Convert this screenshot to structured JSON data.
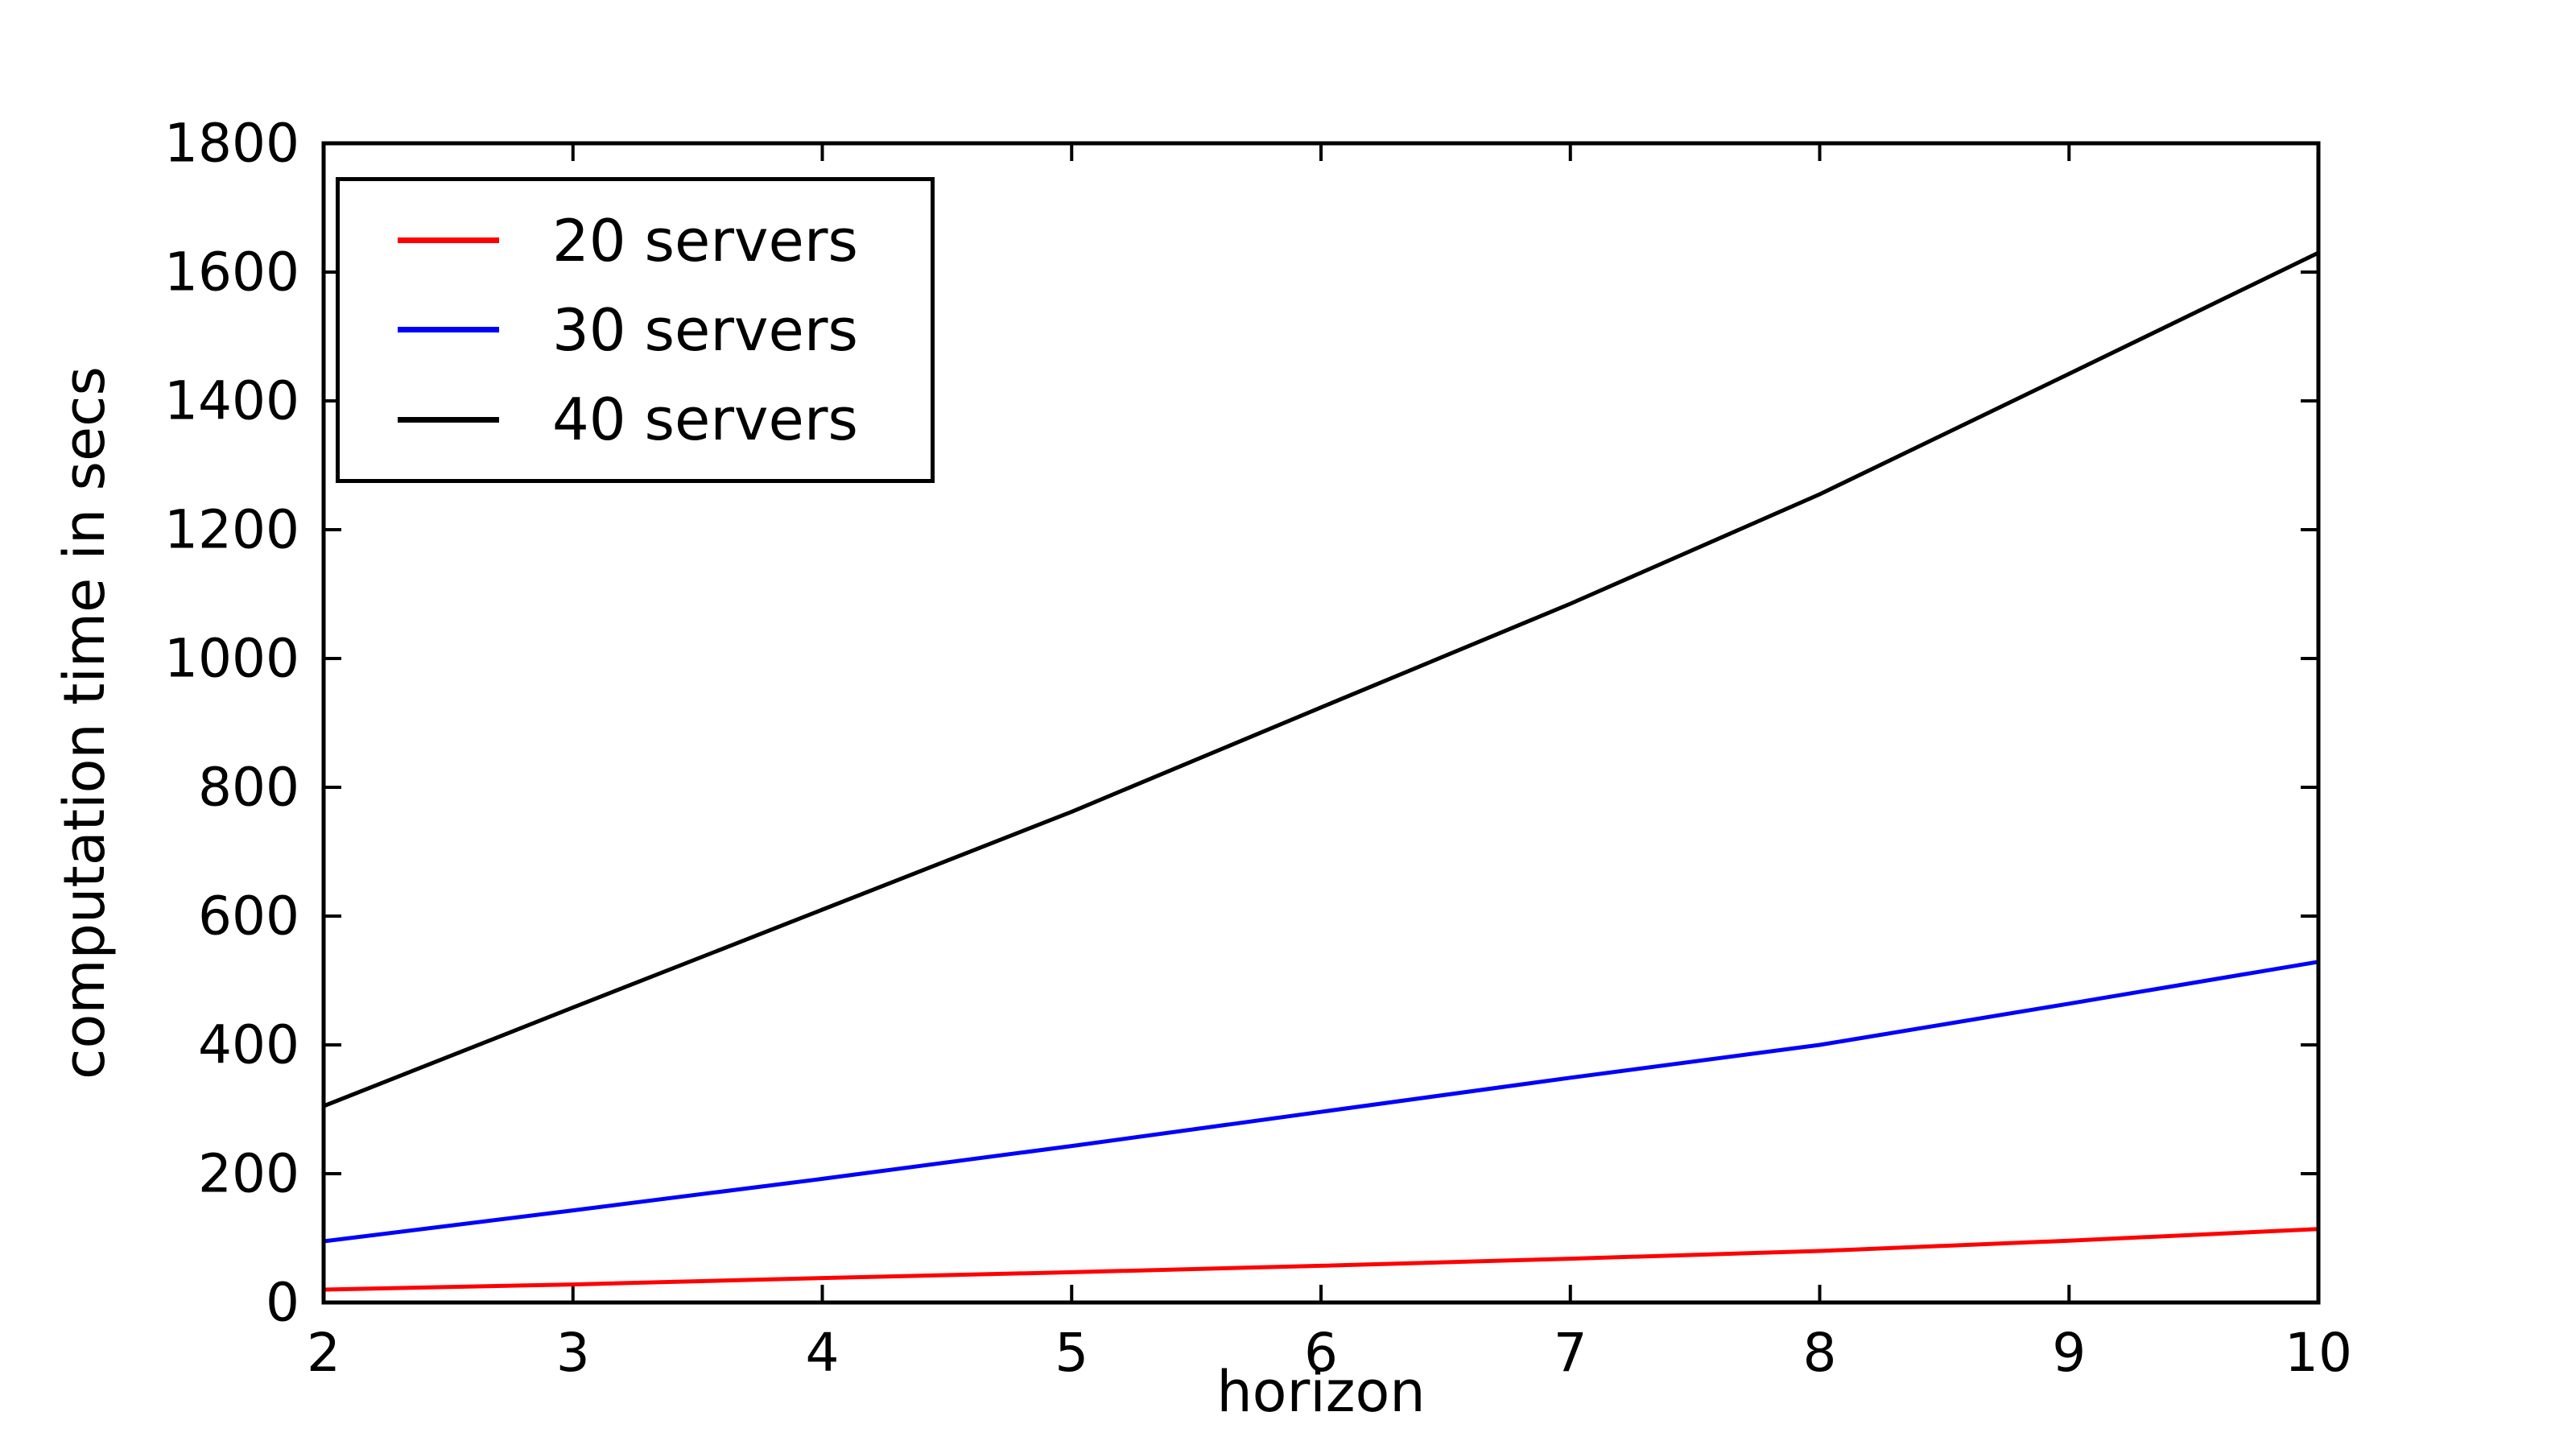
{
  "figure": {
    "background": "#ffffff",
    "axis_color": "#000000",
    "tick_color": "#000000"
  },
  "chart_data": {
    "type": "line",
    "title": "",
    "xlabel": "horizon",
    "ylabel": "computation time in secs",
    "xlim": [
      2,
      10
    ],
    "ylim": [
      0,
      1800
    ],
    "xticks": [
      2,
      3,
      4,
      5,
      6,
      7,
      8,
      9,
      10
    ],
    "yticks": [
      0,
      200,
      400,
      600,
      800,
      1000,
      1200,
      1400,
      1600,
      1800
    ],
    "grid": false,
    "legend_position": "upper left",
    "x": [
      2,
      3,
      4,
      5,
      6,
      7,
      8,
      9,
      10
    ],
    "series": [
      {
        "name": "20 servers",
        "color": "#ff0000",
        "values": [
          20,
          28,
          38,
          47,
          57,
          68,
          80,
          96,
          114
        ]
      },
      {
        "name": "30 servers",
        "color": "#0000ff",
        "values": [
          95,
          143,
          192,
          243,
          296,
          349,
          400,
          464,
          529
        ]
      },
      {
        "name": "40 servers",
        "color": "#000000",
        "values": [
          305,
          458,
          610,
          762,
          924,
          1085,
          1255,
          1442,
          1630
        ]
      }
    ]
  }
}
